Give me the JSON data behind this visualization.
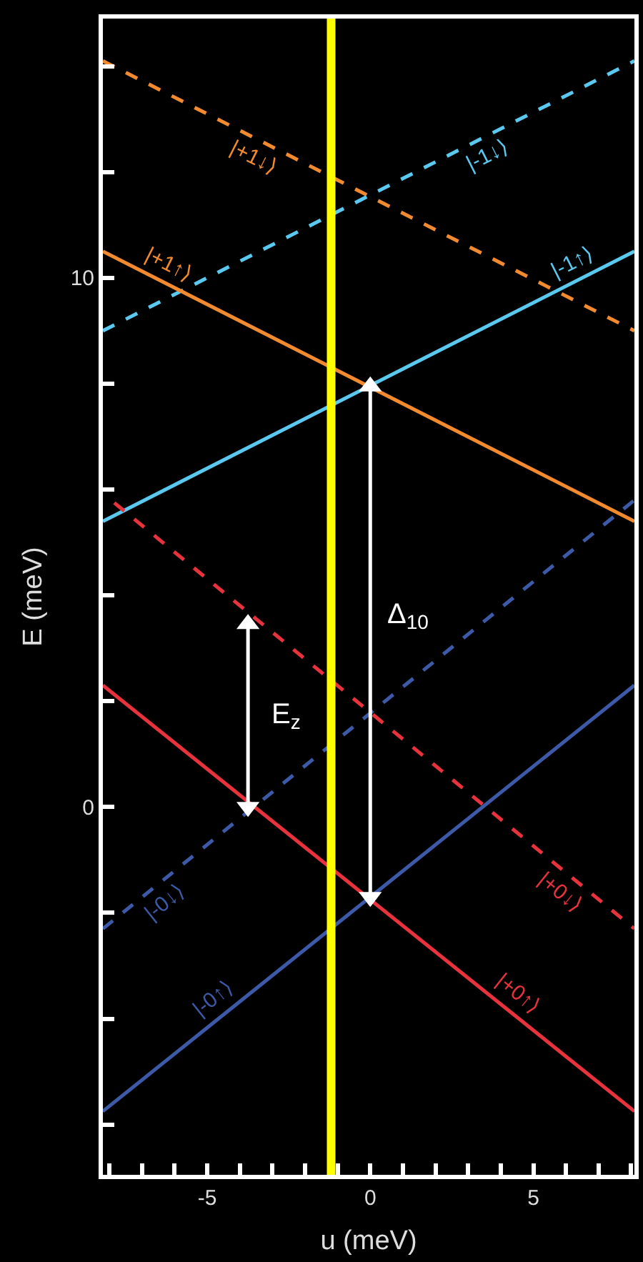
{
  "chart_data": {
    "type": "line",
    "xlabel": "u (meV)",
    "ylabel": "E (meV)",
    "xlim": [
      -8.2,
      8.1
    ],
    "ylim": [
      -6.95,
      14.9
    ],
    "xticks": [
      {
        "value": -8,
        "label": null
      },
      {
        "value": -7,
        "label": null
      },
      {
        "value": -6,
        "label": null
      },
      -5,
      {
        "value": -4,
        "label": null
      },
      {
        "value": -3,
        "label": null
      },
      {
        "value": -2,
        "label": null
      },
      {
        "value": -1,
        "label": null
      },
      0,
      {
        "value": 1,
        "label": null
      },
      {
        "value": 2,
        "label": null
      },
      {
        "value": 3,
        "label": null
      },
      {
        "value": 4,
        "label": null
      },
      5,
      {
        "value": 6,
        "label": null
      },
      {
        "value": 7,
        "label": null
      },
      {
        "value": 8,
        "label": null
      }
    ],
    "yticks": [
      {
        "value": -6,
        "label": null
      },
      {
        "value": -4,
        "label": null
      },
      {
        "value": -2,
        "label": null
      },
      0,
      {
        "value": 2,
        "label": null
      },
      {
        "value": 4,
        "label": null
      },
      {
        "value": 6,
        "label": null
      },
      {
        "value": 8,
        "label": null
      },
      10,
      {
        "value": 12,
        "label": null
      },
      {
        "value": 14,
        "label": null
      }
    ],
    "grid": false,
    "legend": false,
    "marker": "none",
    "series": [
      {
        "name": "|+1↓⟩",
        "x": [
          -8.2,
          8.1
        ],
        "values": [
          14.1,
          9.0
        ],
        "color": "#f28a30",
        "line_style": "dashed"
      },
      {
        "name": "|-1↓⟩",
        "x": [
          -8.2,
          8.1
        ],
        "values": [
          9.0,
          14.1
        ],
        "color": "#5bc8f0",
        "line_style": "dashed"
      },
      {
        "name": "|+1↑⟩",
        "x": [
          -8.2,
          8.1
        ],
        "values": [
          10.5,
          5.4
        ],
        "color": "#f28a30",
        "line_style": "solid"
      },
      {
        "name": "|-1↑⟩",
        "x": [
          -8.2,
          8.1
        ],
        "values": [
          5.4,
          10.5
        ],
        "color": "#5bc8f0",
        "line_style": "solid"
      },
      {
        "name": "|+0↓⟩",
        "x": [
          -7.85,
          8.1
        ],
        "values": [
          5.75,
          -2.3
        ],
        "color": "#e8323c",
        "line_style": "dashed"
      },
      {
        "name": "|-0↓⟩",
        "x": [
          -8.2,
          8.1
        ],
        "values": [
          -2.3,
          5.8
        ],
        "color": "#3c5aa8",
        "line_style": "dashed"
      },
      {
        "name": "|+0↑⟩",
        "x": [
          -8.2,
          8.1
        ],
        "values": [
          2.3,
          -5.75
        ],
        "color": "#e8323c",
        "line_style": "solid"
      },
      {
        "name": "|-0↑⟩",
        "x": [
          -8.2,
          8.1
        ],
        "values": [
          -5.75,
          2.3
        ],
        "color": "#3c5aa8",
        "line_style": "solid"
      },
      {
        "name": "Δ$_{10}$",
        "type": "line",
        "x": [
          0,
          0
        ],
        "values": [
          -1.7,
          7.95
        ],
        "color": "#ffffff",
        "line_style": "solid",
        "marker": "triangle"
      },
      {
        "name": "E$_{z}$",
        "type": "line",
        "x": [
          -3.75,
          -3.75
        ],
        "values": [
          0,
          3.46
        ],
        "color": "#ffffff",
        "line_style": "solid",
        "marker": "triangle"
      }
    ],
    "ref_lines": [
      {
        "axis": "x",
        "value": -1.2,
        "color": "#ffff00"
      }
    ]
  }
}
